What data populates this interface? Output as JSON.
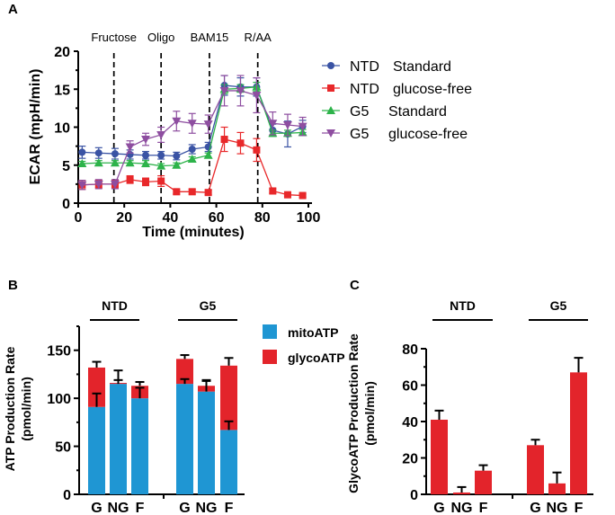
{
  "chart_data": [
    {
      "panel": "A",
      "type": "line",
      "xlabel": "Time (minutes)",
      "ylabel": "ECAR (mpH/min)",
      "xlim": [
        0,
        100
      ],
      "ylim": [
        0,
        20
      ],
      "xticks": [
        0,
        20,
        40,
        60,
        80,
        100
      ],
      "yticks": [
        0,
        5,
        10,
        15,
        20
      ],
      "injections": [
        {
          "label": "Fructose",
          "x": 15.5
        },
        {
          "label": "Oligo",
          "x": 36
        },
        {
          "label": "BAM15",
          "x": 57
        },
        {
          "label": "R/AA",
          "x": 78
        }
      ],
      "x": [
        1.7,
        8.9,
        16,
        22.5,
        29.3,
        36,
        42.7,
        49.5,
        56.5,
        63.5,
        70.5,
        77.5,
        84.5,
        91,
        97.5
      ],
      "series": [
        {
          "name": "NTD Standard",
          "label_a": "NTD",
          "label_b": "Standard",
          "color": "#3a53a4",
          "marker": "circle",
          "values": [
            6.7,
            6.6,
            6.5,
            6.4,
            6.3,
            6.3,
            6.2,
            7.1,
            7.4,
            15.5,
            15.3,
            15.3,
            9.6,
            9.1,
            10.1
          ],
          "errors": [
            0.8,
            0.7,
            0.7,
            0.6,
            0.5,
            0.5,
            0.5,
            0.6,
            0.6,
            1.3,
            1.2,
            1.2,
            0.8,
            1.7,
            0.8
          ]
        },
        {
          "name": "NTD glucose-free",
          "label_a": "NTD",
          "label_b": "glucose-free",
          "color": "#e8282a",
          "marker": "square",
          "values": [
            2.4,
            2.5,
            2.5,
            3.1,
            2.8,
            2.9,
            1.5,
            1.5,
            1.4,
            8.4,
            7.9,
            7.0,
            1.6,
            1.1,
            1.0
          ],
          "errors": [
            0.6,
            0.5,
            0.5,
            0.5,
            0.5,
            0.7,
            0.3,
            0.3,
            0.3,
            1.6,
            1.4,
            1.5,
            0.3,
            0.2,
            0.2
          ]
        },
        {
          "name": "G5 Standard",
          "label_a": "G5",
          "label_b": "Standard",
          "color": "#2db34a",
          "marker": "triangle-up",
          "values": [
            5.2,
            5.3,
            5.3,
            5.3,
            5.2,
            4.9,
            5.0,
            5.8,
            6.3,
            15.0,
            15.1,
            15.3,
            9.2,
            9.2,
            9.3
          ],
          "errors": [
            0.3,
            0.3,
            0.3,
            0.3,
            0.4,
            0.3,
            0.3,
            0.3,
            0.3,
            0.6,
            0.5,
            0.6,
            0.4,
            0.4,
            0.4
          ]
        },
        {
          "name": "G5 glucose-free",
          "label_a": "G5",
          "label_b": "glucose-free",
          "color": "#8e4ea0",
          "marker": "triangle-down",
          "values": [
            2.4,
            2.5,
            2.5,
            7.4,
            8.4,
            9.0,
            10.8,
            10.5,
            10.4,
            14.8,
            14.8,
            14.2,
            10.5,
            10.3,
            10.1
          ],
          "errors": [
            0.6,
            0.6,
            0.6,
            0.8,
            0.8,
            1.0,
            1.3,
            1.3,
            1.2,
            2.0,
            2.0,
            2.3,
            1.5,
            1.4,
            1.2
          ]
        }
      ]
    },
    {
      "panel": "B",
      "type": "bar",
      "stacked": true,
      "ylabel_1": "ATP Production Rate",
      "ylabel_2": "(pmol/min)",
      "ylim": [
        0,
        175
      ],
      "yticks": [
        0,
        50,
        100,
        150
      ],
      "groups": [
        "NTD",
        "G5"
      ],
      "categories": [
        "G",
        "NG",
        "F",
        "G",
        "NG",
        "F"
      ],
      "series": [
        {
          "name": "mitoATP",
          "color": "#1f96d3",
          "values": [
            91,
            115,
            100,
            115,
            107,
            67
          ],
          "errors": [
            14,
            4,
            11,
            5,
            11,
            9
          ]
        },
        {
          "name": "glycoATP",
          "color": "#e3242b",
          "values": [
            41,
            1,
            13,
            26,
            6,
            67
          ],
          "errors": [
            6,
            13,
            4,
            4,
            6,
            8
          ]
        }
      ]
    },
    {
      "panel": "C",
      "type": "bar",
      "ylabel_1": "GlycoATP Production Rate",
      "ylabel_2": "(pmol/min)",
      "ylim": [
        0,
        80
      ],
      "yticks": [
        0,
        20,
        40,
        60,
        80
      ],
      "groups": [
        "NTD",
        "G5"
      ],
      "categories": [
        "G",
        "NG",
        "F",
        "G",
        "NG",
        "F"
      ],
      "color": "#e3242b",
      "values": [
        41,
        1,
        13,
        27,
        6,
        67
      ],
      "errors": [
        5,
        3,
        3,
        3,
        6,
        8
      ]
    }
  ]
}
